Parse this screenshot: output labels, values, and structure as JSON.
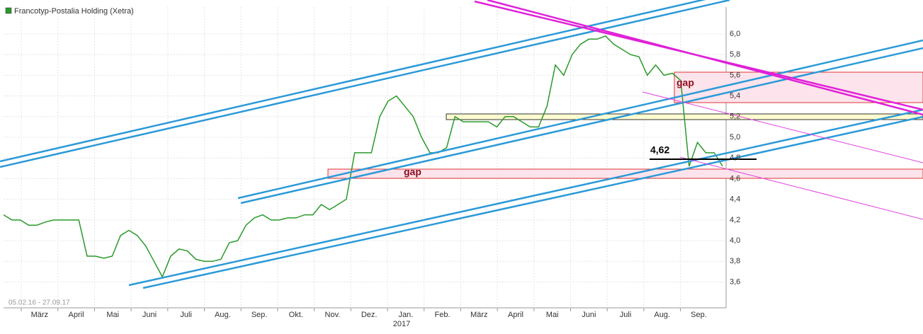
{
  "chart_data": {
    "type": "line",
    "title": "Francotyp-Postalia Holding (Xetra)",
    "date_range": "05.02.16 - 27.09.17",
    "series": [
      {
        "name": "Francotyp-Postalia Holding (Xetra)",
        "color": "#2a9a2a",
        "values": [
          4.25,
          4.2,
          4.2,
          4.15,
          4.15,
          4.18,
          4.2,
          4.2,
          4.2,
          4.2,
          3.85,
          3.85,
          3.83,
          3.85,
          4.05,
          4.1,
          4.05,
          3.95,
          3.8,
          3.65,
          3.85,
          3.92,
          3.9,
          3.82,
          3.8,
          3.8,
          3.82,
          3.98,
          4.0,
          4.15,
          4.22,
          4.25,
          4.2,
          4.2,
          4.22,
          4.22,
          4.25,
          4.25,
          4.35,
          4.3,
          4.35,
          4.4,
          4.85,
          4.85,
          4.85,
          5.2,
          5.35,
          5.4,
          5.3,
          5.2,
          5.0,
          4.85,
          4.85,
          4.9,
          5.2,
          5.15,
          5.15,
          5.15,
          5.15,
          5.1,
          5.2,
          5.2,
          5.15,
          5.1,
          5.1,
          5.3,
          5.7,
          5.6,
          5.8,
          5.9,
          5.95,
          5.95,
          5.98,
          5.9,
          5.85,
          5.8,
          5.78,
          5.6,
          5.7,
          5.6,
          5.62,
          5.55,
          4.72,
          4.95,
          4.85,
          4.85,
          4.72
        ]
      }
    ],
    "x_labels": [
      "März",
      "April",
      "Mai",
      "Juni",
      "Juli",
      "Aug.",
      "Sep.",
      "Okt.",
      "Nov.",
      "Dez.",
      "Jan.",
      "Feb.",
      "März",
      "April",
      "Mai",
      "Juni",
      "Juli",
      "Aug.",
      "Sep."
    ],
    "year_label": "2017",
    "ylim": [
      3.35,
      6.26
    ],
    "yticks": [
      {
        "value": 3.6,
        "label": "3,6"
      },
      {
        "value": 3.8,
        "label": "3,8"
      },
      {
        "value": 4.0,
        "label": "4,0"
      },
      {
        "value": 4.2,
        "label": "4,2"
      },
      {
        "value": 4.4,
        "label": "4,4"
      },
      {
        "value": 4.6,
        "label": "4,6"
      },
      {
        "value": 4.8,
        "label": "4,8"
      },
      {
        "value": 5.0,
        "label": "5,0"
      },
      {
        "value": 5.2,
        "label": "5,2"
      },
      {
        "value": 5.4,
        "label": "5,4"
      },
      {
        "value": 5.6,
        "label": "5,6"
      },
      {
        "value": 5.8,
        "label": "5,8"
      },
      {
        "value": 6.0,
        "label": "6,0"
      }
    ],
    "grid": true,
    "annotations": [
      "gap",
      "gap",
      "4,62"
    ]
  }
}
